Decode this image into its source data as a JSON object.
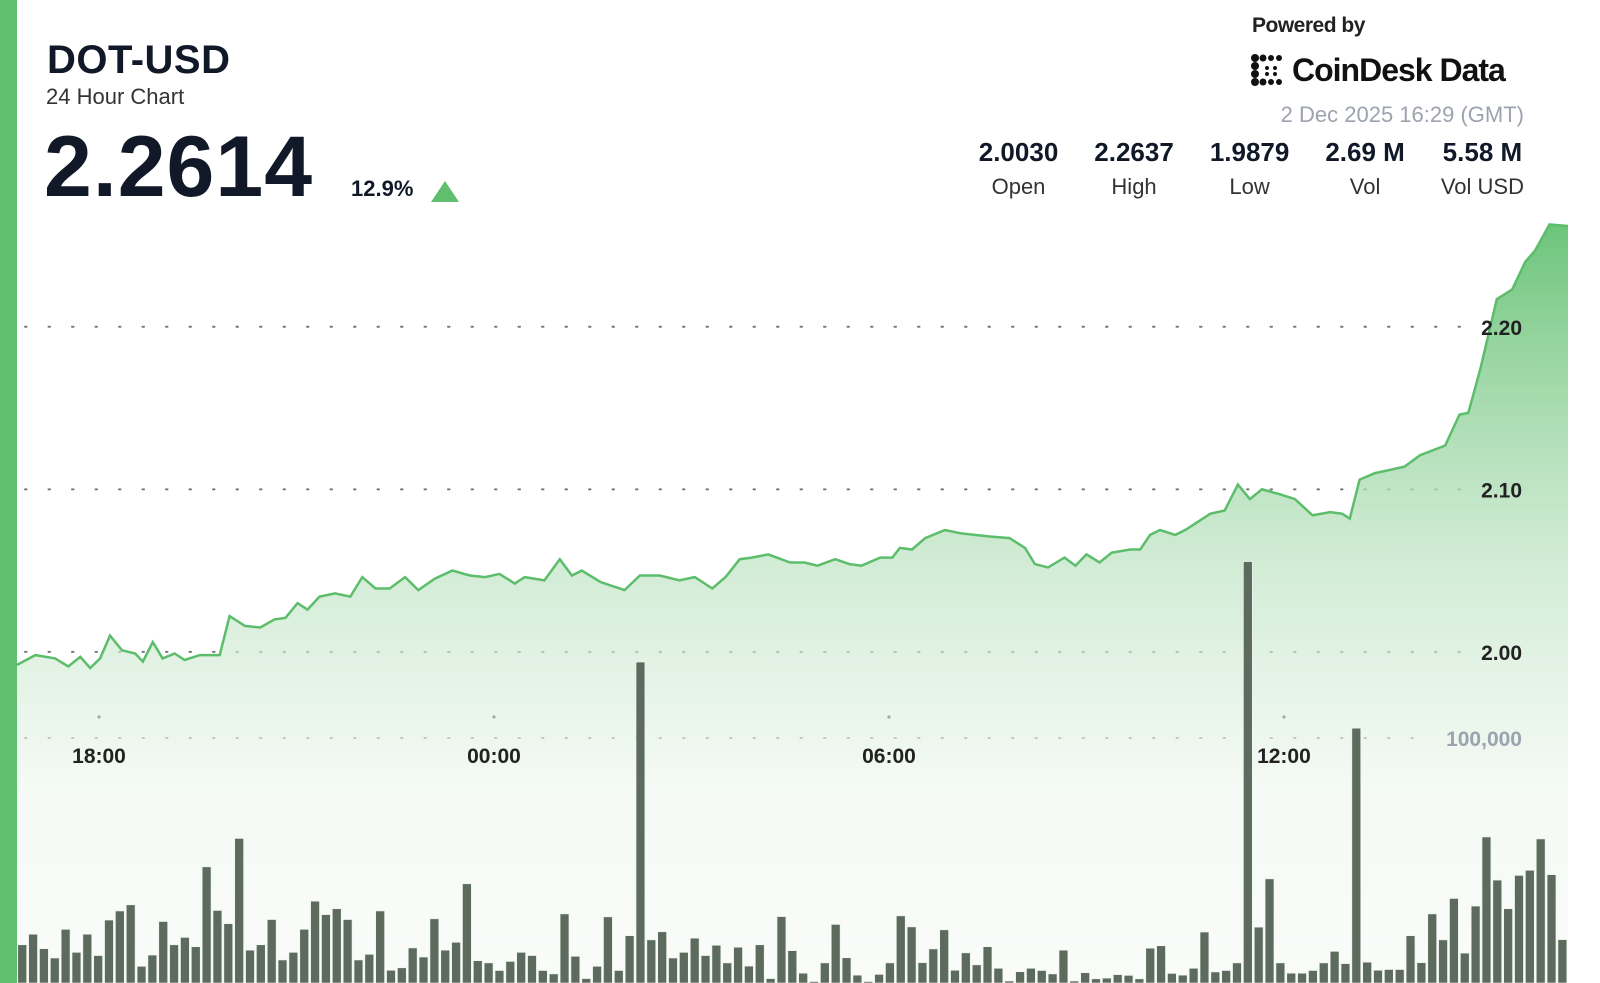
{
  "header": {
    "symbol": "DOT-USD",
    "subtitle": "24 Hour Chart",
    "price": "2.2614",
    "change": "12.9%",
    "direction": "up",
    "powered_by": "Powered by",
    "brand": "CoinDesk Data",
    "timestamp": "2 Dec 2025 16:29 (GMT)"
  },
  "stats": [
    {
      "value": "2.0030",
      "label": "Open"
    },
    {
      "value": "2.2637",
      "label": "High"
    },
    {
      "value": "1.9879",
      "label": "Low"
    },
    {
      "value": "2.69 M",
      "label": "Vol"
    },
    {
      "value": "5.58 M",
      "label": "Vol USD"
    }
  ],
  "colors": {
    "accent": "#5fbf6f",
    "line": "#5cbd6a",
    "volume_bar": "#5c6b5e",
    "text": "#111827"
  },
  "chart_data": {
    "type": "area",
    "title": "24 Hour Chart",
    "price_ticks": [
      "2.00",
      "2.10",
      "2.20"
    ],
    "price_tick_values": [
      2.0,
      2.1,
      2.2
    ],
    "volume_ticks": [
      "100,000"
    ],
    "volume_tick_values": [
      100000
    ],
    "x_ticks": [
      "18:00",
      "00:00",
      "06:00",
      "12:00"
    ],
    "ylim": [
      1.8,
      2.27
    ],
    "grid": "dotted horizontal",
    "price_series": {
      "time": [
        "16:45",
        "17:02",
        "17:20",
        "17:32",
        "17:43",
        "17:52",
        "18:01",
        "18:10",
        "18:21",
        "18:33",
        "18:40",
        "18:49",
        "18:58",
        "19:09",
        "19:18",
        "19:32",
        "19:50",
        "19:59",
        "20:13",
        "20:27",
        "20:40",
        "20:50",
        "21:01",
        "21:10",
        "21:21",
        "21:35",
        "21:49",
        "22:00",
        "22:12",
        "22:25",
        "22:39",
        "22:51",
        "23:06",
        "23:22",
        "23:38",
        "23:52",
        "00:05",
        "00:19",
        "00:28",
        "00:46",
        "01:00",
        "01:11",
        "01:20",
        "01:37",
        "01:59",
        "02:13",
        "02:31",
        "02:49",
        "03:03",
        "03:19",
        "03:31",
        "03:44",
        "03:55",
        "04:10",
        "04:30",
        "04:43",
        "04:55",
        "05:11",
        "05:24",
        "05:35",
        "05:52",
        "06:03",
        "06:10",
        "06:21",
        "06:33",
        "06:51",
        "07:05",
        "07:18",
        "07:32",
        "07:50",
        "08:04",
        "08:13",
        "08:25",
        "08:40",
        "08:50",
        "09:00",
        "09:12",
        "09:23",
        "09:40",
        "09:49",
        "09:58",
        "10:07",
        "10:21",
        "10:30",
        "10:53",
        "11:06",
        "11:18",
        "11:29",
        "11:40",
        "11:56",
        "12:10",
        "12:26",
        "12:42",
        "12:53",
        "13:00",
        "13:09",
        "13:23",
        "13:37",
        "13:50",
        "14:04",
        "14:27",
        "14:40",
        "14:48",
        "14:59",
        "15:14",
        "15:28",
        "15:40",
        "15:49",
        "16:02",
        "16:19"
      ],
      "price": [
        1.992,
        1.998,
        1.996,
        1.991,
        1.997,
        1.99,
        1.996,
        2.01,
        2.001,
        1.999,
        1.994,
        2.006,
        1.996,
        1.999,
        1.995,
        1.998,
        1.998,
        2.022,
        2.016,
        2.015,
        2.02,
        2.021,
        2.03,
        2.026,
        2.034,
        2.036,
        2.034,
        2.046,
        2.039,
        2.039,
        2.046,
        2.038,
        2.045,
        2.05,
        2.047,
        2.046,
        2.048,
        2.042,
        2.046,
        2.044,
        2.057,
        2.047,
        2.05,
        2.043,
        2.038,
        2.047,
        2.047,
        2.044,
        2.046,
        2.039,
        2.046,
        2.057,
        2.058,
        2.06,
        2.055,
        2.055,
        2.053,
        2.057,
        2.054,
        2.053,
        2.058,
        2.058,
        2.064,
        2.063,
        2.07,
        2.075,
        2.073,
        2.072,
        2.071,
        2.07,
        2.064,
        2.054,
        2.052,
        2.058,
        2.053,
        2.06,
        2.055,
        2.061,
        2.063,
        2.063,
        2.072,
        2.075,
        2.072,
        2.075,
        2.085,
        2.087,
        2.103,
        2.094,
        2.1,
        2.097,
        2.094,
        2.084,
        2.086,
        2.085,
        2.082,
        2.106,
        2.11,
        2.112,
        2.114,
        2.121,
        2.127,
        2.146,
        2.147,
        2.174,
        2.217,
        2.223,
        2.24,
        2.247,
        2.263,
        2.262
      ]
    },
    "volume": [
      15600,
      19900,
      14000,
      10200,
      21900,
      12500,
      19900,
      11200,
      25700,
      29400,
      31900,
      6800,
      11400,
      25100,
      15600,
      18600,
      14800,
      47400,
      29600,
      24200,
      59000,
      13400,
      15600,
      25900,
      9400,
      12500,
      21900,
      33400,
      27900,
      30300,
      25900,
      9400,
      11700,
      29400,
      5200,
      6200,
      14300,
      10600,
      26200,
      13400,
      16600,
      40500,
      9100,
      8200,
      5100,
      8800,
      12500,
      11200,
      5100,
      3700,
      28200,
      10900,
      1800,
      6800,
      27000,
      5100,
      19300,
      131000,
      17600,
      20900,
      10200,
      12500,
      18300,
      11200,
      15400,
      8200,
      14600,
      6900,
      15600,
      1800,
      27100,
      13200,
      4000,
      600,
      8200,
      23900,
      10300,
      3200,
      600,
      3500,
      8200,
      27400,
      22900,
      8300,
      13900,
      21700,
      5200,
      12300,
      7400,
      14800,
      6000,
      800,
      4600,
      6000,
      5100,
      3700,
      13400,
      800,
      4200,
      1700,
      2000,
      3400,
      3100,
      1700,
      14200,
      15200,
      3900,
      3200,
      6000,
      20800,
      4500,
      5100,
      8200,
      172000,
      22800,
      42500,
      8200,
      4000,
      4000,
      5100,
      8200,
      12900,
      7900,
      104000,
      8500,
      5200,
      5500,
      5500,
      19300,
      8300,
      28200,
      17600,
      34500,
      12200,
      31400,
      59600,
      42000,
      30300,
      43900,
      46000,
      58800,
      44200,
      17700
    ]
  }
}
